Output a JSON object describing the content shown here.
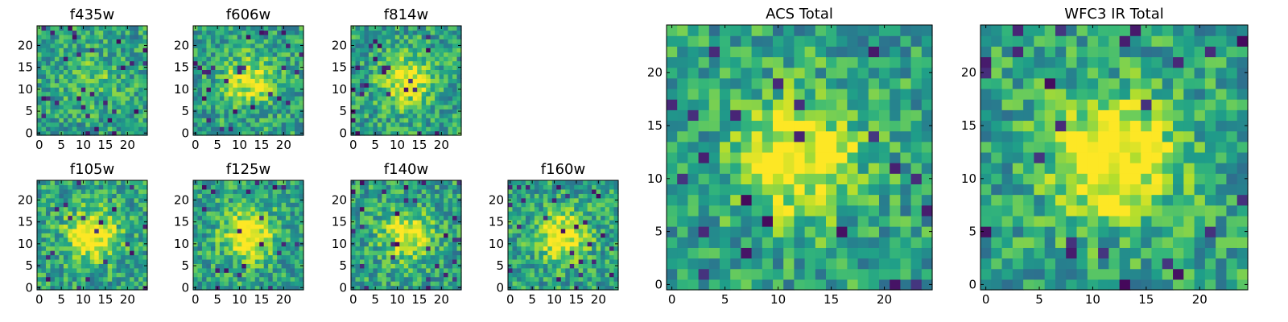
{
  "chart_data": [
    {
      "type": "heatmap",
      "title": "f435w",
      "grid_size": 25,
      "x_ticks": [
        "0",
        "5",
        "10",
        "15",
        "20"
      ],
      "y_ticks": [
        "0",
        "5",
        "10",
        "15",
        "20"
      ],
      "colormap": "viridis",
      "center_brightness": 0.15,
      "seed": 11
    },
    {
      "type": "heatmap",
      "title": "f606w",
      "grid_size": 25,
      "x_ticks": [
        "0",
        "5",
        "10",
        "15",
        "20"
      ],
      "y_ticks": [
        "0",
        "5",
        "10",
        "15",
        "20"
      ],
      "colormap": "viridis",
      "center_brightness": 0.4,
      "seed": 23
    },
    {
      "type": "heatmap",
      "title": "f814w",
      "grid_size": 25,
      "x_ticks": [
        "0",
        "5",
        "10",
        "15",
        "20"
      ],
      "y_ticks": [
        "0",
        "5",
        "10",
        "15",
        "20"
      ],
      "colormap": "viridis",
      "center_brightness": 0.45,
      "seed": 37
    },
    {
      "type": "heatmap",
      "title": "f105w",
      "grid_size": 25,
      "x_ticks": [
        "0",
        "5",
        "10",
        "15",
        "20"
      ],
      "y_ticks": [
        "0",
        "5",
        "10",
        "15",
        "20"
      ],
      "colormap": "viridis",
      "center_brightness": 0.55,
      "seed": 41
    },
    {
      "type": "heatmap",
      "title": "f125w",
      "grid_size": 25,
      "x_ticks": [
        "0",
        "5",
        "10",
        "15",
        "20"
      ],
      "y_ticks": [
        "0",
        "5",
        "10",
        "15",
        "20"
      ],
      "colormap": "viridis",
      "center_brightness": 0.55,
      "seed": 53
    },
    {
      "type": "heatmap",
      "title": "f140w",
      "grid_size": 25,
      "x_ticks": [
        "0",
        "5",
        "10",
        "15",
        "20"
      ],
      "y_ticks": [
        "0",
        "5",
        "10",
        "15",
        "20"
      ],
      "colormap": "viridis",
      "center_brightness": 0.45,
      "seed": 67
    },
    {
      "type": "heatmap",
      "title": "f160w",
      "grid_size": 25,
      "x_ticks": [
        "0",
        "5",
        "10",
        "15",
        "20"
      ],
      "y_ticks": [
        "0",
        "5",
        "10",
        "15",
        "20"
      ],
      "colormap": "viridis",
      "center_brightness": 0.5,
      "seed": 71
    },
    {
      "type": "heatmap",
      "title": "ACS Total",
      "grid_size": 25,
      "x_ticks": [
        "0",
        "5",
        "10",
        "15",
        "20"
      ],
      "y_ticks": [
        "0",
        "5",
        "10",
        "15",
        "20"
      ],
      "colormap": "viridis",
      "center_brightness": 0.5,
      "seed": 83
    },
    {
      "type": "heatmap",
      "title": "WFC3 IR Total",
      "grid_size": 25,
      "x_ticks": [
        "0",
        "5",
        "10",
        "15",
        "20"
      ],
      "y_ticks": [
        "0",
        "5",
        "10",
        "15",
        "20"
      ],
      "colormap": "viridis",
      "center_brightness": 0.6,
      "seed": 97
    }
  ]
}
